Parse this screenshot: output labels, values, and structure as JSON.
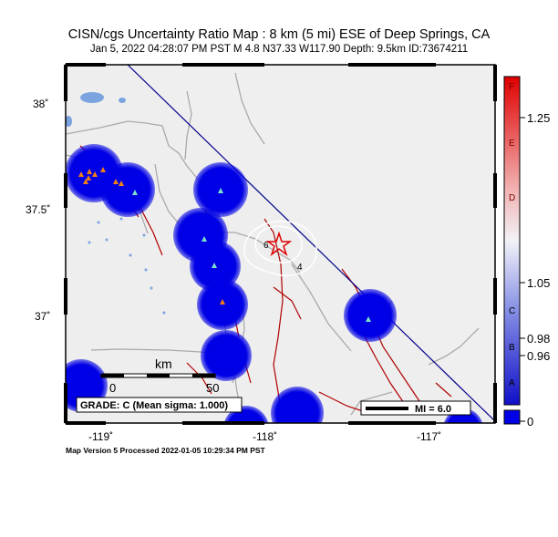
{
  "title": "CISN/cgs Uncertainty Ratio Map : 8 km (5 mi) ESE of Deep Springs, CA",
  "subtitle": "Jan  5, 2022 04:28:07 PM PST   M 4.8   N37.33 W117.90   Depth: 9.5km   ID:73674211",
  "footer": "Map Version 5 Processed 2022-01-05 10:29:34 PM PST",
  "axes": {
    "lat_labels": [
      "38˚",
      "37.5˚",
      "37˚"
    ],
    "lon_labels": [
      "-119˚",
      "-118˚",
      "-117˚"
    ]
  },
  "scale_bar": {
    "unit": "km",
    "tick0": "0",
    "tick50": "50"
  },
  "grade_box": "GRADE: C (Mean sigma: 1.000)",
  "mmi_legend": "MI = 6.0",
  "contour_labels": [
    "6",
    "4"
  ],
  "colorbar": {
    "letters": [
      "F",
      "E",
      "D",
      "C",
      "B",
      "A"
    ],
    "values": [
      "1.25",
      "1.05",
      "0.98",
      "0.96"
    ],
    "zero_label": "0"
  },
  "colors": {
    "uncertainty_blob": "#0000e6",
    "faults": "#b00000",
    "roads": "#aaaaaa",
    "lakes": "#7aa3e0",
    "border": "#00008b",
    "epicenter": "#e00000",
    "station_orange": "#f07f1a",
    "station_cyan": "#7de3c8"
  }
}
